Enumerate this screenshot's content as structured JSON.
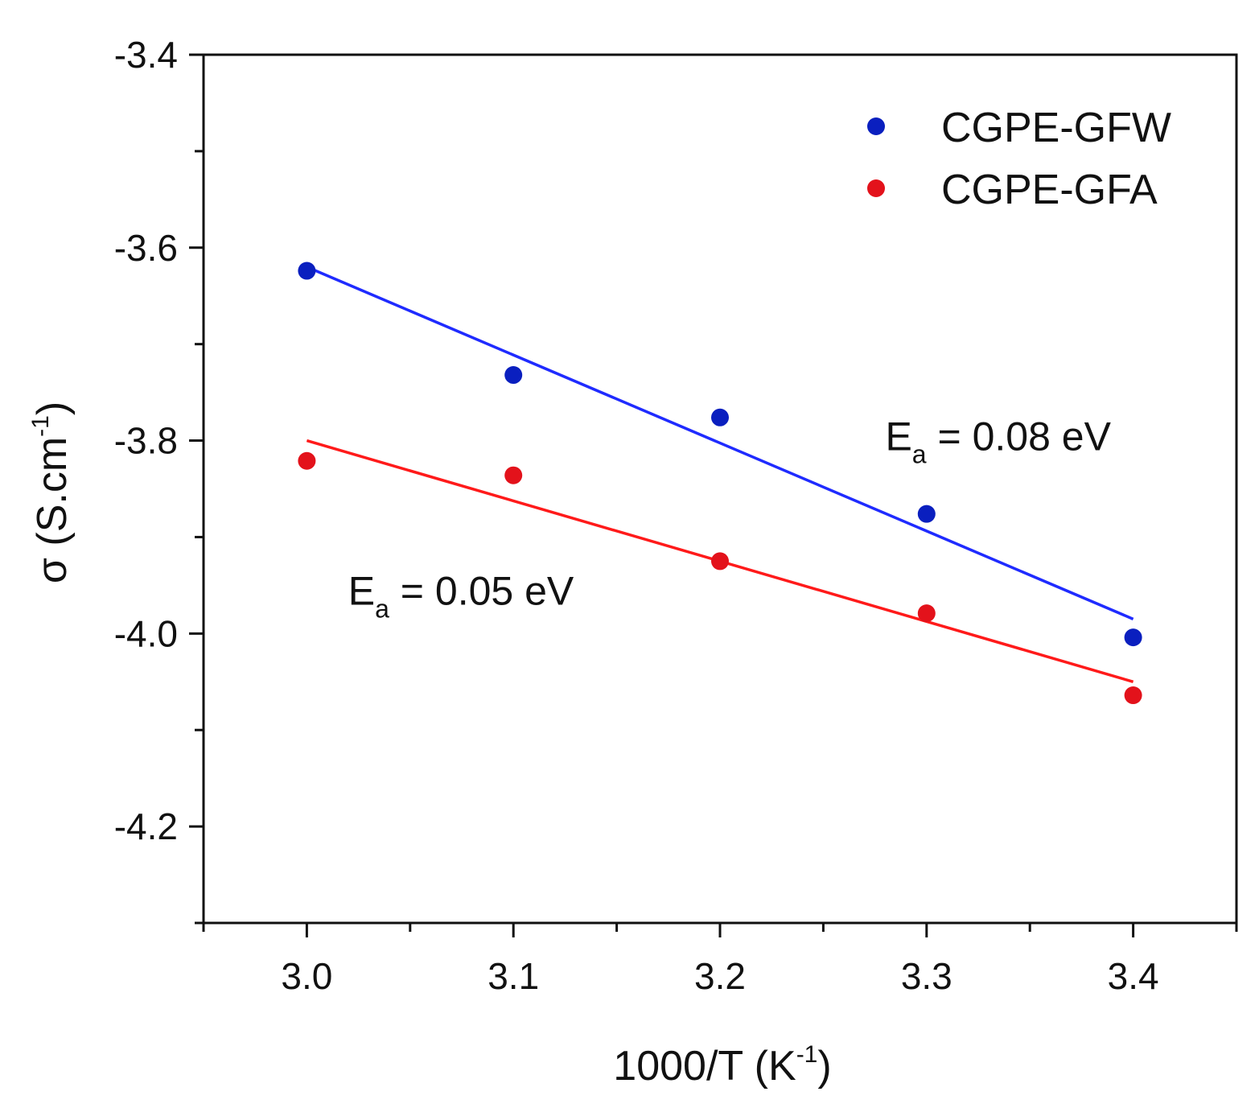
{
  "chart_data": {
    "type": "scatter",
    "title": "",
    "xlabel": {
      "main": "1000/T (K",
      "sup": "-1",
      "close": ")"
    },
    "ylabel": {
      "main": "σ (S.cm",
      "sup": "-1",
      "close": ")"
    },
    "xlim": [
      2.95,
      3.45
    ],
    "ylim": [
      -4.3,
      -3.4
    ],
    "x_major_ticks": [
      3.0,
      3.1,
      3.2,
      3.3,
      3.4
    ],
    "x_tick_labels": [
      "3.0",
      "3.1",
      "3.2",
      "3.3",
      "3.4"
    ],
    "x_minor_ticks": [
      2.95,
      3.05,
      3.15,
      3.25,
      3.35,
      3.45
    ],
    "y_major_ticks": [
      -3.4,
      -3.6,
      -3.8,
      -4.0,
      -4.2
    ],
    "y_tick_labels": [
      "-3.4",
      "-3.6",
      "-3.8",
      "-4.0",
      "-4.2"
    ],
    "y_minor_ticks": [
      -3.5,
      -3.7,
      -3.9,
      -4.1,
      -4.3
    ],
    "grid": false,
    "legend_position": "top-right",
    "series": [
      {
        "name": "CGPE-GFW",
        "color": "#0a1fbf",
        "line_color": "#1f2bff",
        "x": [
          3.0,
          3.1,
          3.2,
          3.3,
          3.4
        ],
        "y": [
          -3.624,
          -3.732,
          -3.776,
          -3.876,
          -4.004
        ],
        "fit": {
          "x": [
            3.0,
            3.4
          ],
          "y": [
            -3.62,
            -3.985
          ]
        },
        "annotation": {
          "main": "E",
          "sub": "a",
          "rest": " = 0.08 eV",
          "x": 3.28,
          "y": -3.81
        }
      },
      {
        "name": "CGPE-GFA",
        "color": "#e3121b",
        "line_color": "#ff1a1a",
        "x": [
          3.0,
          3.1,
          3.2,
          3.3,
          3.4
        ],
        "y": [
          -3.821,
          -3.836,
          -3.925,
          -3.979,
          -4.064
        ],
        "fit": {
          "x": [
            3.0,
            3.4
          ],
          "y": [
            -3.8,
            -4.05
          ]
        },
        "annotation": {
          "main": "E",
          "sub": "a",
          "rest": " = 0.05 eV",
          "x": 3.02,
          "y": -3.97
        }
      }
    ]
  }
}
